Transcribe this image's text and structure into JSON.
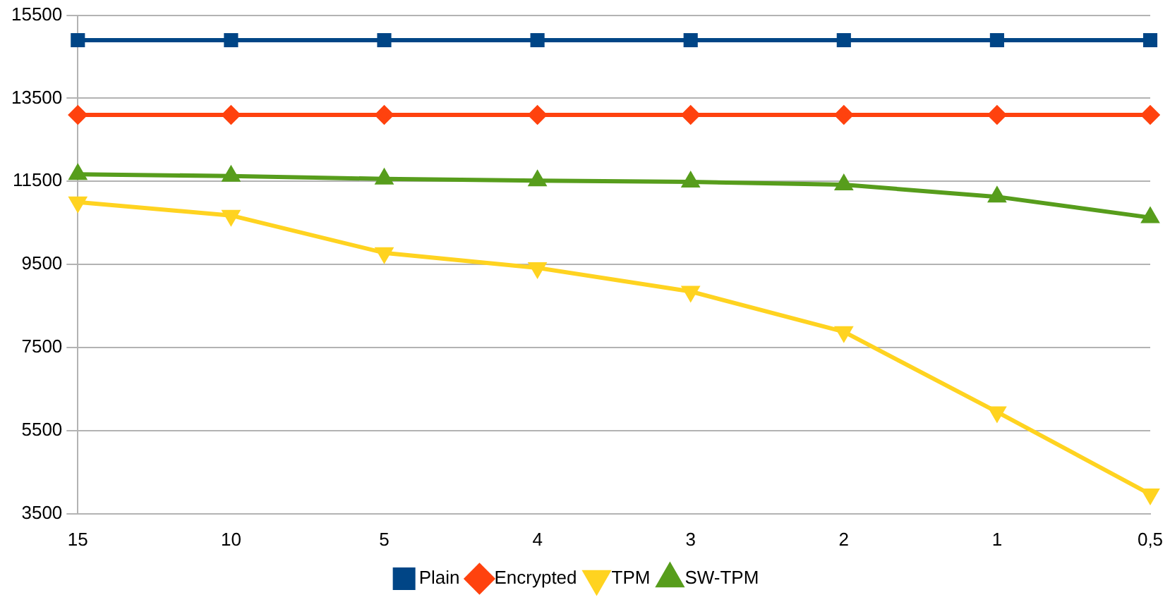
{
  "chart_data": {
    "type": "line",
    "categories": [
      "15",
      "10",
      "5",
      "4",
      "3",
      "2",
      "1",
      "0,5"
    ],
    "series": [
      {
        "name": "Plain",
        "color": "#004586",
        "marker": "square",
        "values": [
          14900,
          14900,
          14900,
          14900,
          14900,
          14900,
          14900,
          14900
        ]
      },
      {
        "name": "Encrypted",
        "color": "#ff420e",
        "marker": "diamond",
        "values": [
          13100,
          13100,
          13100,
          13100,
          13100,
          13100,
          13100,
          13100
        ]
      },
      {
        "name": "TPM",
        "color": "#ffd320",
        "marker": "triangle-down",
        "values": [
          11000,
          10680,
          9780,
          9420,
          8850,
          7880,
          5950,
          3970
        ]
      },
      {
        "name": "SW-TPM",
        "color": "#579d1c",
        "marker": "triangle",
        "values": [
          11670,
          11630,
          11560,
          11520,
          11490,
          11420,
          11130,
          10630
        ]
      }
    ],
    "ylim": [
      3500,
      15500
    ],
    "yticks": [
      3500,
      5500,
      7500,
      9500,
      11500,
      13500,
      15500
    ],
    "grid": "y",
    "legend": "bottom"
  }
}
